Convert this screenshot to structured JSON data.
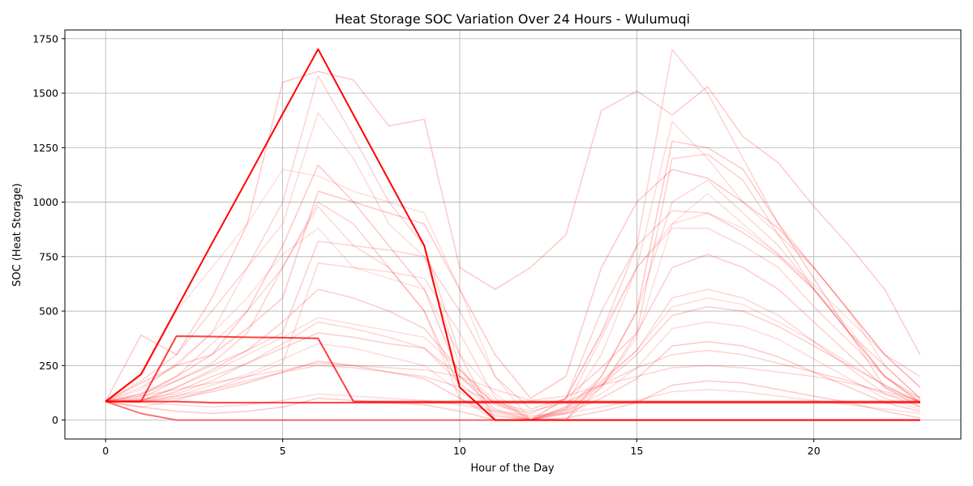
{
  "chart_data": {
    "type": "line",
    "title": "Heat Storage SOC Variation Over 24 Hours - Wulumuqi",
    "xlabel": "Hour of the Day",
    "ylabel": "SOC (Heat Storage)",
    "xlim": [
      -1.15,
      24.15
    ],
    "ylim": [
      -87,
      1790
    ],
    "x_ticks": [
      0,
      5,
      10,
      15,
      20
    ],
    "y_ticks": [
      0,
      250,
      500,
      750,
      1000,
      1250,
      1500,
      1750
    ],
    "grid": true,
    "legend": "none",
    "line_color": "#ff0000",
    "x": [
      0,
      1,
      2,
      3,
      4,
      5,
      6,
      7,
      8,
      9,
      10,
      11,
      12,
      13,
      14,
      15,
      16,
      17,
      18,
      19,
      20,
      21,
      22,
      23
    ],
    "series": [
      {
        "values": [
          85,
          210,
          510,
          810,
          1105,
          1405,
          1702,
          1400,
          1100,
          800,
          150,
          0,
          0,
          0,
          0,
          0,
          0,
          0,
          0,
          0,
          0,
          0,
          0,
          0
        ]
      },
      {
        "values": [
          85,
          85,
          385,
          383,
          380,
          378,
          375,
          85,
          85,
          85,
          85,
          85,
          85,
          85,
          85,
          85,
          85,
          85,
          85,
          85,
          85,
          85,
          85,
          85
        ]
      },
      {
        "values": [
          85,
          85,
          85,
          80,
          80,
          80,
          80,
          80,
          80,
          80,
          80,
          80,
          80,
          80,
          80,
          80,
          80,
          80,
          80,
          80,
          80,
          80,
          80,
          80
        ]
      },
      {
        "values": [
          85,
          30,
          0,
          0,
          0,
          0,
          0,
          0,
          0,
          0,
          0,
          0,
          0,
          0,
          0,
          0,
          0,
          0,
          0,
          0,
          0,
          0,
          0,
          0
        ]
      },
      {
        "values": [
          85,
          390,
          300,
          560,
          900,
          1550,
          1600,
          1560,
          1350,
          1380,
          700,
          600,
          700,
          850,
          1420,
          1510,
          1400,
          1530,
          1300,
          1180,
          980,
          800,
          600,
          300
        ]
      },
      {
        "values": [
          85,
          180,
          300,
          500,
          700,
          1000,
          1580,
          1300,
          1000,
          800,
          300,
          0,
          0,
          100,
          400,
          800,
          1700,
          1500,
          1200,
          900,
          700,
          500,
          300,
          200
        ]
      },
      {
        "values": [
          85,
          150,
          250,
          400,
          700,
          900,
          1410,
          1200,
          900,
          750,
          250,
          0,
          0,
          50,
          300,
          700,
          1370,
          1200,
          1000,
          850,
          700,
          500,
          250,
          100
        ]
      },
      {
        "values": [
          85,
          120,
          200,
          300,
          500,
          800,
          1170,
          1000,
          800,
          600,
          200,
          50,
          0,
          0,
          200,
          500,
          1280,
          1250,
          1150,
          900,
          650,
          400,
          200,
          80
        ]
      },
      {
        "values": [
          85,
          100,
          180,
          260,
          400,
          700,
          1000,
          900,
          700,
          500,
          150,
          0,
          0,
          0,
          150,
          400,
          1200,
          1220,
          1100,
          850,
          600,
          400,
          150,
          80
        ]
      },
      {
        "values": [
          85,
          110,
          200,
          350,
          500,
          700,
          980,
          800,
          700,
          500,
          100,
          0,
          0,
          50,
          200,
          500,
          1000,
          1100,
          950,
          800,
          600,
          400,
          200,
          100
        ]
      },
      {
        "values": [
          85,
          140,
          260,
          400,
          560,
          760,
          880,
          700,
          650,
          600,
          300,
          120,
          0,
          30,
          150,
          380,
          900,
          1040,
          900,
          760,
          600,
          420,
          200,
          80
        ]
      },
      {
        "values": [
          85,
          90,
          150,
          230,
          320,
          450,
          600,
          560,
          500,
          420,
          230,
          70,
          30,
          100,
          240,
          400,
          700,
          760,
          700,
          600,
          450,
          300,
          150,
          60
        ]
      },
      {
        "values": [
          85,
          95,
          120,
          180,
          260,
          350,
          450,
          420,
          380,
          330,
          170,
          40,
          0,
          60,
          180,
          320,
          560,
          600,
          560,
          480,
          360,
          240,
          120,
          60
        ]
      },
      {
        "values": [
          85,
          85,
          110,
          160,
          210,
          280,
          350,
          330,
          290,
          250,
          130,
          30,
          0,
          40,
          120,
          240,
          420,
          450,
          430,
          370,
          280,
          190,
          100,
          50
        ]
      },
      {
        "values": [
          85,
          85,
          100,
          130,
          170,
          220,
          270,
          250,
          220,
          190,
          100,
          20,
          0,
          30,
          100,
          190,
          340,
          360,
          340,
          290,
          220,
          150,
          80,
          40
        ]
      },
      {
        "values": [
          85,
          90,
          110,
          140,
          180,
          220,
          250,
          240,
          220,
          200,
          150,
          80,
          40,
          80,
          160,
          240,
          300,
          320,
          300,
          260,
          220,
          180,
          120,
          80
        ]
      },
      {
        "values": [
          85,
          80,
          70,
          60,
          70,
          90,
          120,
          110,
          100,
          90,
          70,
          40,
          20,
          30,
          60,
          90,
          130,
          140,
          130,
          110,
          90,
          70,
          50,
          30
        ]
      },
      {
        "values": [
          85,
          170,
          250,
          300,
          420,
          560,
          1050,
          1000,
          950,
          900,
          600,
          300,
          100,
          200,
          700,
          1000,
          1150,
          1110,
          1000,
          880,
          700,
          500,
          300,
          150
        ]
      },
      {
        "values": [
          85,
          120,
          180,
          250,
          320,
          400,
          820,
          800,
          780,
          750,
          500,
          200,
          50,
          100,
          500,
          800,
          960,
          950,
          860,
          750,
          600,
          400,
          250,
          100
        ]
      },
      {
        "values": [
          85,
          60,
          90,
          140,
          200,
          260,
          720,
          700,
          680,
          650,
          400,
          100,
          0,
          60,
          380,
          700,
          880,
          880,
          800,
          700,
          520,
          360,
          200,
          90
        ]
      },
      {
        "values": [
          85,
          200,
          500,
          700,
          900,
          1150,
          1120,
          1050,
          1000,
          950,
          600,
          200,
          0,
          100,
          400,
          700,
          900,
          950,
          880,
          760,
          620,
          460,
          300,
          150
        ]
      },
      {
        "values": [
          85,
          90,
          130,
          200,
          260,
          330,
          400,
          380,
          350,
          330,
          200,
          80,
          0,
          40,
          160,
          300,
          480,
          520,
          500,
          430,
          340,
          250,
          160,
          80
        ]
      },
      {
        "values": [
          85,
          110,
          140,
          170,
          200,
          230,
          260,
          250,
          240,
          230,
          200,
          140,
          90,
          110,
          160,
          200,
          240,
          250,
          240,
          220,
          200,
          170,
          130,
          90
        ]
      },
      {
        "values": [
          85,
          85,
          150,
          220,
          300,
          380,
          470,
          440,
          410,
          380,
          230,
          90,
          10,
          50,
          170,
          320,
          520,
          560,
          530,
          450,
          360,
          260,
          160,
          80
        ]
      },
      {
        "values": [
          85,
          60,
          40,
          30,
          40,
          60,
          100,
          90,
          80,
          70,
          40,
          0,
          0,
          10,
          40,
          80,
          160,
          180,
          170,
          140,
          110,
          80,
          40,
          10
        ]
      }
    ]
  }
}
